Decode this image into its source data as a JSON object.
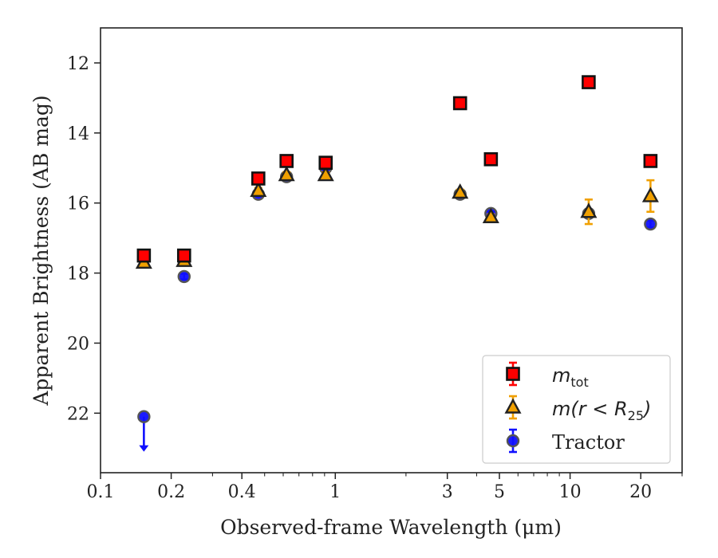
{
  "chart_data": {
    "type": "scatter",
    "title": "",
    "xlabel": "Observed-frame Wavelength (μm)",
    "ylabel": "Apparent Brightness (AB mag)",
    "xscale": "log",
    "yinverted": true,
    "xlim": [
      0.1,
      30
    ],
    "ylim": [
      23.7,
      11.0
    ],
    "xticks": [
      {
        "value": 0.1,
        "label": "0.1"
      },
      {
        "value": 0.2,
        "label": "0.2"
      },
      {
        "value": 0.4,
        "label": "0.4"
      },
      {
        "value": 1,
        "label": "1"
      },
      {
        "value": 3,
        "label": "3"
      },
      {
        "value": 5,
        "label": "5"
      },
      {
        "value": 10,
        "label": "10"
      },
      {
        "value": 20,
        "label": "20"
      }
    ],
    "yticks": [
      {
        "value": 12,
        "label": "12"
      },
      {
        "value": 14,
        "label": "14"
      },
      {
        "value": 16,
        "label": "16"
      },
      {
        "value": 18,
        "label": "18"
      },
      {
        "value": 20,
        "label": "20"
      },
      {
        "value": 22,
        "label": "22"
      }
    ],
    "legend_position": "lower-right",
    "grid": false,
    "series": [
      {
        "key": "mtot",
        "legend_main": "m",
        "legend_sub": "tot",
        "marker": "square",
        "fill": "#ff0000",
        "edge": "#111111",
        "errcolor": "#ff0000",
        "points": [
          {
            "x": 0.153,
            "y": 17.5,
            "err": 0.1
          },
          {
            "x": 0.227,
            "y": 17.5,
            "err": 0.1
          },
          {
            "x": 0.47,
            "y": 15.3,
            "err": 0.08
          },
          {
            "x": 0.62,
            "y": 14.8,
            "err": 0.08
          },
          {
            "x": 0.91,
            "y": 14.85,
            "err": 0.08
          },
          {
            "x": 3.4,
            "y": 13.15,
            "err": 0.05
          },
          {
            "x": 4.6,
            "y": 14.75,
            "err": 0.05
          },
          {
            "x": 12.0,
            "y": 12.55,
            "err": 0.05
          },
          {
            "x": 22.0,
            "y": 14.8,
            "err": 0.05
          }
        ]
      },
      {
        "key": "mr25",
        "legend_main": "m(r < R",
        "legend_sub": "25",
        "legend_tail": ")",
        "marker": "triangle",
        "fill": "#f0a000",
        "edge": "#222222",
        "errcolor": "#f0a000",
        "points": [
          {
            "x": 0.153,
            "y": 17.7,
            "err": 0.1
          },
          {
            "x": 0.227,
            "y": 17.65,
            "err": 0.1
          },
          {
            "x": 0.47,
            "y": 15.65,
            "err": 0.08
          },
          {
            "x": 0.62,
            "y": 15.2,
            "err": 0.08
          },
          {
            "x": 0.91,
            "y": 15.2,
            "err": 0.08
          },
          {
            "x": 3.4,
            "y": 15.7,
            "err": 0.08
          },
          {
            "x": 4.6,
            "y": 16.4,
            "err": 0.08
          },
          {
            "x": 12.0,
            "y": 16.25,
            "err": 0.35
          },
          {
            "x": 22.0,
            "y": 15.8,
            "err": 0.45
          }
        ]
      },
      {
        "key": "tractor",
        "legend_main": "Tractor",
        "marker": "circle",
        "fill": "#1010ff",
        "edge": "#555555",
        "errcolor": "#1010ff",
        "points": [
          {
            "x": 0.153,
            "y": 22.1,
            "err": 0,
            "upper_limit": true,
            "arrow_to": 23.1
          },
          {
            "x": 0.227,
            "y": 18.1,
            "err": 0.08
          },
          {
            "x": 0.47,
            "y": 15.75,
            "err": 0.06
          },
          {
            "x": 0.62,
            "y": 15.25,
            "err": 0.06
          },
          {
            "x": 0.91,
            "y": 15.0,
            "err": 0.06
          },
          {
            "x": 3.4,
            "y": 15.75,
            "err": 0.06
          },
          {
            "x": 4.6,
            "y": 16.3,
            "err": 0.06
          },
          {
            "x": 12.0,
            "y": 16.3,
            "err": 0.1
          },
          {
            "x": 22.0,
            "y": 16.6,
            "err": 0.1
          }
        ]
      }
    ]
  }
}
